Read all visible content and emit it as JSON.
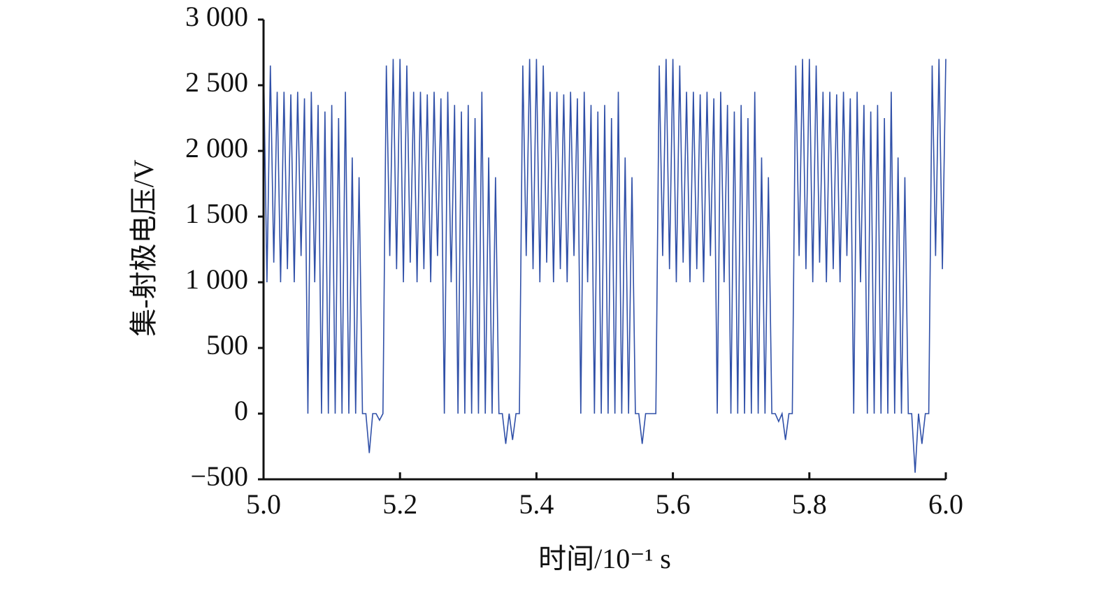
{
  "chart_data": {
    "type": "line",
    "xlabel": "时间/10⁻¹ s",
    "ylabel": "集-射极电压/V",
    "color": "#3050a8",
    "xlim": [
      5.0,
      6.0
    ],
    "xticks": [
      {
        "value": 5,
        "label": "5.0"
      },
      5.2,
      5.4,
      5.6,
      5.8,
      {
        "value": 6,
        "label": "6.0"
      }
    ],
    "ylim": [
      -500,
      3000
    ],
    "yticks": [
      {
        "value": -500,
        "label": "−500"
      },
      0,
      500,
      {
        "value": 1000,
        "label": "1 000"
      },
      {
        "value": 1500,
        "label": "1 500"
      },
      {
        "value": 2000,
        "label": "2 000"
      },
      {
        "value": 2500,
        "label": "2 500"
      },
      {
        "value": 3000,
        "label": "3 000"
      }
    ],
    "x": [
      5.0,
      5.005,
      5.01,
      5.015,
      5.02,
      5.025,
      5.03,
      5.035,
      5.04,
      5.045,
      5.05,
      5.055,
      5.06,
      5.065,
      5.07,
      5.075,
      5.08,
      5.085,
      5.09,
      5.095,
      5.1,
      5.105,
      5.11,
      5.115,
      5.12,
      5.125,
      5.13,
      5.135,
      5.14,
      5.145,
      5.15,
      5.155,
      5.16,
      5.165,
      5.17,
      5.175,
      5.18,
      5.185,
      5.19,
      5.195,
      5.2,
      5.205,
      5.21,
      5.215,
      5.22,
      5.225,
      5.23,
      5.235,
      5.24,
      5.245,
      5.25,
      5.255,
      5.26,
      5.265,
      5.27,
      5.275,
      5.28,
      5.285,
      5.29,
      5.295,
      5.3,
      5.305,
      5.31,
      5.315,
      5.32,
      5.325,
      5.33,
      5.335,
      5.34,
      5.345,
      5.35,
      5.355,
      5.36,
      5.365,
      5.37,
      5.375,
      5.38,
      5.385,
      5.39,
      5.395,
      5.4,
      5.405,
      5.41,
      5.415,
      5.42,
      5.425,
      5.43,
      5.435,
      5.44,
      5.445,
      5.45,
      5.455,
      5.46,
      5.465,
      5.47,
      5.475,
      5.48,
      5.485,
      5.49,
      5.495,
      5.5,
      5.505,
      5.51,
      5.515,
      5.52,
      5.525,
      5.53,
      5.535,
      5.54,
      5.545,
      5.55,
      5.555,
      5.56,
      5.565,
      5.57,
      5.575,
      5.58,
      5.585,
      5.59,
      5.595,
      5.6,
      5.605,
      5.61,
      5.615,
      5.62,
      5.625,
      5.63,
      5.635,
      5.64,
      5.645,
      5.65,
      5.655,
      5.66,
      5.665,
      5.67,
      5.675,
      5.68,
      5.685,
      5.69,
      5.695,
      5.7,
      5.705,
      5.71,
      5.715,
      5.72,
      5.725,
      5.73,
      5.735,
      5.74,
      5.745,
      5.75,
      5.755,
      5.76,
      5.765,
      5.77,
      5.775,
      5.78,
      5.785,
      5.79,
      5.795,
      5.8,
      5.805,
      5.81,
      5.815,
      5.82,
      5.825,
      5.83,
      5.835,
      5.84,
      5.845,
      5.85,
      5.855,
      5.86,
      5.865,
      5.87,
      5.875,
      5.88,
      5.885,
      5.89,
      5.895,
      5.9,
      5.905,
      5.91,
      5.915,
      5.92,
      5.925,
      5.93,
      5.935,
      5.94,
      5.945,
      5.95,
      5.955,
      5.96,
      5.965,
      5.97,
      5.975,
      5.98,
      5.985,
      5.99,
      5.995,
      6.0
    ],
    "values": [
      2700,
      1000,
      2650,
      1150,
      2450,
      1000,
      2450,
      1100,
      2430,
      1000,
      2450,
      1200,
      2400,
      0,
      2450,
      1000,
      2350,
      0,
      2300,
      0,
      2350,
      0,
      2250,
      0,
      2450,
      0,
      1950,
      0,
      1800,
      0,
      0,
      -300,
      0,
      0,
      -50,
      0,
      2650,
      1200,
      2700,
      1100,
      2700,
      1000,
      2650,
      1150,
      2450,
      1000,
      2450,
      1100,
      2430,
      1000,
      2450,
      1200,
      2400,
      0,
      2450,
      1000,
      2350,
      0,
      2300,
      0,
      2350,
      0,
      2250,
      0,
      2450,
      0,
      1950,
      0,
      1800,
      0,
      0,
      -230,
      0,
      -200,
      0,
      0,
      2650,
      1200,
      2700,
      1100,
      2700,
      1000,
      2650,
      1150,
      2450,
      1000,
      2450,
      1100,
      2430,
      1000,
      2450,
      1200,
      2400,
      0,
      2450,
      1000,
      2350,
      0,
      2300,
      0,
      2350,
      0,
      2250,
      0,
      2450,
      0,
      1950,
      0,
      1800,
      0,
      0,
      -230,
      0,
      0,
      0,
      0,
      2650,
      1200,
      2700,
      1100,
      2700,
      1000,
      2650,
      1150,
      2450,
      1000,
      2450,
      1100,
      2430,
      1000,
      2450,
      1200,
      2400,
      0,
      2450,
      1000,
      2350,
      0,
      2300,
      0,
      2350,
      0,
      2250,
      0,
      2450,
      0,
      1950,
      0,
      1800,
      0,
      0,
      -60,
      0,
      -200,
      0,
      0,
      2650,
      1200,
      2700,
      1100,
      2700,
      1000,
      2650,
      1150,
      2450,
      1000,
      2450,
      1100,
      2430,
      1000,
      2450,
      1200,
      2400,
      0,
      2450,
      1000,
      2350,
      0,
      2300,
      0,
      2350,
      0,
      2250,
      0,
      2450,
      0,
      1950,
      0,
      1800,
      0,
      0,
      -450,
      0,
      -230,
      0,
      0,
      2650,
      1200,
      2700,
      1100,
      2700
    ]
  }
}
